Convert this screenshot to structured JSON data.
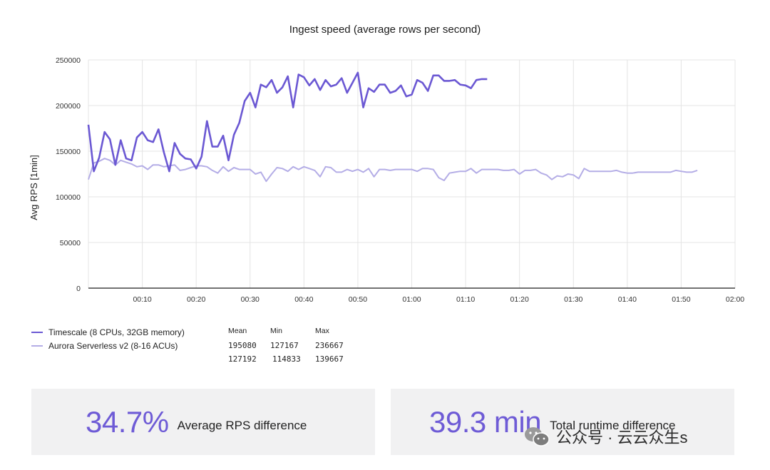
{
  "chart_data": {
    "type": "line",
    "title": "Ingest speed (average rows per second)",
    "ylabel": "Avg  RPS [1min]",
    "xlabel": "",
    "xlim": [
      0,
      120
    ],
    "ylim": [
      0,
      250000
    ],
    "yticks": [
      "250000",
      "200000",
      "150000",
      "100000",
      "50000",
      "0"
    ],
    "xticks": [
      "00:10",
      "00:20",
      "00:30",
      "00:40",
      "00:50",
      "01:00",
      "01:10",
      "01:20",
      "01:30",
      "01:40",
      "01:50",
      "02:00"
    ],
    "grid": true,
    "series": [
      {
        "name": "Timescale (8 CPUs, 32GB memory)",
        "color": "#6b58d3",
        "x": [
          0,
          1,
          2,
          3,
          4,
          5,
          6,
          7,
          8,
          9,
          10,
          11,
          12,
          13,
          14,
          15,
          16,
          17,
          18,
          19,
          20,
          21,
          22,
          23,
          24,
          25,
          26,
          27,
          28,
          29,
          30,
          31,
          32,
          33,
          34,
          35,
          36,
          37,
          38,
          39,
          40,
          41,
          42,
          43,
          44,
          45,
          46,
          47,
          48,
          49,
          50,
          51,
          52,
          53,
          54,
          55,
          56,
          57,
          58,
          59,
          60,
          61,
          62,
          63,
          64,
          65,
          66,
          67,
          68,
          69,
          70,
          71,
          72,
          73,
          74
        ],
        "y": [
          179000,
          128000,
          143000,
          171000,
          163000,
          135000,
          162000,
          142000,
          140000,
          165000,
          171000,
          162000,
          160000,
          174000,
          149000,
          128000,
          159000,
          147000,
          142000,
          141000,
          131000,
          144000,
          183000,
          155000,
          155000,
          167000,
          140000,
          168000,
          181000,
          205000,
          214000,
          198000,
          223000,
          220000,
          228000,
          214000,
          220000,
          232000,
          198000,
          234000,
          231000,
          222000,
          229000,
          217000,
          228000,
          221000,
          223000,
          230000,
          214000,
          225000,
          236000,
          198000,
          219000,
          215000,
          223000,
          223000,
          214000,
          216000,
          222000,
          210000,
          212000,
          228000,
          225000,
          216000,
          233000,
          233000,
          227000,
          227000,
          228000,
          223000,
          222000,
          219000,
          228000,
          229000,
          229000
        ]
      },
      {
        "name": "Aurora Serverless v2 (8-16 ACUs)",
        "color": "#b4ade6",
        "x": [
          0,
          1,
          2,
          3,
          4,
          5,
          6,
          7,
          8,
          9,
          10,
          11,
          12,
          13,
          14,
          15,
          16,
          17,
          18,
          19,
          20,
          21,
          22,
          23,
          24,
          25,
          26,
          27,
          28,
          29,
          30,
          31,
          32,
          33,
          34,
          35,
          36,
          37,
          38,
          39,
          40,
          41,
          42,
          43,
          44,
          45,
          46,
          47,
          48,
          49,
          50,
          51,
          52,
          53,
          54,
          55,
          56,
          57,
          58,
          59,
          60,
          61,
          62,
          63,
          64,
          65,
          66,
          67,
          68,
          69,
          70,
          71,
          72,
          73,
          74,
          75,
          76,
          77,
          78,
          79,
          80,
          81,
          82,
          83,
          84,
          85,
          86,
          87,
          88,
          89,
          90,
          91,
          92,
          93,
          94,
          95,
          96,
          97,
          98,
          99,
          100,
          101,
          102,
          103,
          104,
          105,
          106,
          107,
          108,
          109,
          110,
          111,
          112,
          113
        ],
        "y": [
          119000,
          137000,
          139000,
          142000,
          140000,
          135000,
          140000,
          138000,
          136000,
          133000,
          134000,
          130000,
          135000,
          135000,
          133000,
          134000,
          135000,
          129000,
          130000,
          132000,
          134000,
          134000,
          133000,
          129000,
          126000,
          133000,
          128000,
          132000,
          130000,
          130000,
          130000,
          125000,
          127000,
          117000,
          125000,
          132000,
          131000,
          128000,
          133000,
          130000,
          133000,
          131000,
          129000,
          122000,
          133000,
          132000,
          127000,
          127000,
          130000,
          128000,
          130000,
          127000,
          131000,
          122000,
          130000,
          130000,
          129000,
          130000,
          130000,
          130000,
          130000,
          128000,
          131000,
          131000,
          130000,
          121000,
          118000,
          126000,
          127000,
          128000,
          128000,
          131000,
          126000,
          130000,
          130000,
          130000,
          130000,
          129000,
          129000,
          130000,
          125000,
          129000,
          129000,
          130000,
          126000,
          124000,
          119000,
          123000,
          122000,
          125000,
          124000,
          120000,
          131000,
          128000,
          128000,
          128000,
          128000,
          128000,
          129000,
          127000,
          126000,
          126000,
          127000,
          127000,
          127000,
          127000,
          127000,
          127000,
          127000,
          129000,
          128000,
          127000,
          127000,
          129000
        ]
      }
    ],
    "stats": {
      "headers": [
        "Mean",
        "Min",
        "Max"
      ],
      "rows": [
        {
          "mean": "195080",
          "min": "127167",
          "max": "236667"
        },
        {
          "mean": "127192",
          "min": "114833",
          "max": "139667"
        }
      ]
    }
  },
  "cards": [
    {
      "value": "34.7%",
      "label": "Average RPS difference"
    },
    {
      "value": "39.3 min",
      "label": "Total runtime difference"
    }
  ],
  "watermark": {
    "text": "公众号 · 云云众生s",
    "icon": "wechat-icon"
  }
}
